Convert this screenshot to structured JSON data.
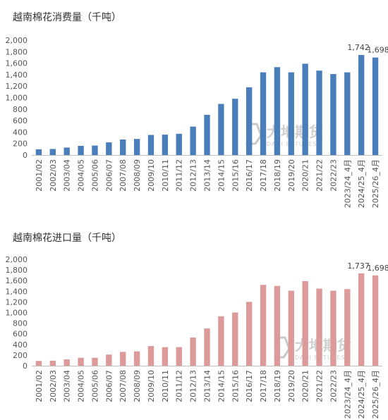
{
  "chart_data": [
    {
      "type": "bar",
      "title": "越南棉花消费量（千吨）",
      "categories": [
        "2001/02",
        "2002/03",
        "2003/04",
        "2004/05",
        "2005/06",
        "2006/07",
        "2007/08",
        "2008/09",
        "2009/10",
        "2010/11",
        "2011/12",
        "2012/13",
        "2013/14",
        "2014/15",
        "2015/16",
        "2016/17",
        "2017/18",
        "2018/19",
        "2019/20",
        "2020/21",
        "2021/22",
        "2022/23",
        "2023/24_4月",
        "2024/25_4月",
        "2025/26_4月"
      ],
      "values": [
        100,
        105,
        130,
        160,
        165,
        220,
        270,
        280,
        350,
        355,
        370,
        495,
        700,
        890,
        980,
        1180,
        1440,
        1530,
        1440,
        1590,
        1470,
        1410,
        1440,
        1742,
        1698
      ],
      "data_labels": {
        "23": "1,742",
        "24": "1,698"
      },
      "yticks": [
        "0",
        "200",
        "400",
        "600",
        "800",
        "1,000",
        "1,200",
        "1,400",
        "1,600",
        "1,800",
        "2,000"
      ],
      "ylim": [
        0,
        2000
      ],
      "color": "#4a7ebb",
      "grid": false,
      "legend": "none"
    },
    {
      "type": "bar",
      "title": "越南棉花进口量（千吨）",
      "categories": [
        "2001/02",
        "2002/03",
        "2003/04",
        "2004/05",
        "2005/06",
        "2006/07",
        "2007/08",
        "2008/09",
        "2009/10",
        "2010/11",
        "2011/12",
        "2012/13",
        "2013/14",
        "2014/15",
        "2015/16",
        "2016/17",
        "2017/18",
        "2018/19",
        "2019/20",
        "2020/21",
        "2021/22",
        "2022/23",
        "2023/24_4月",
        "2024/25_4月",
        "2025/26_4月"
      ],
      "values": [
        90,
        95,
        120,
        150,
        150,
        210,
        260,
        270,
        370,
        350,
        350,
        530,
        700,
        930,
        1000,
        1200,
        1520,
        1500,
        1410,
        1590,
        1450,
        1410,
        1440,
        1737,
        1698
      ],
      "data_labels": {
        "23": "1,737",
        "24": "1,698"
      },
      "yticks": [
        "0",
        "200",
        "400",
        "600",
        "800",
        "1,000",
        "1,200",
        "1,400",
        "1,600",
        "1,800",
        "2,000"
      ],
      "ylim": [
        0,
        2000
      ],
      "color": "#dc9a9a",
      "grid": false,
      "legend": "none"
    }
  ],
  "watermark": {
    "cn": "大地期货",
    "en": "DADI FUTURES"
  }
}
